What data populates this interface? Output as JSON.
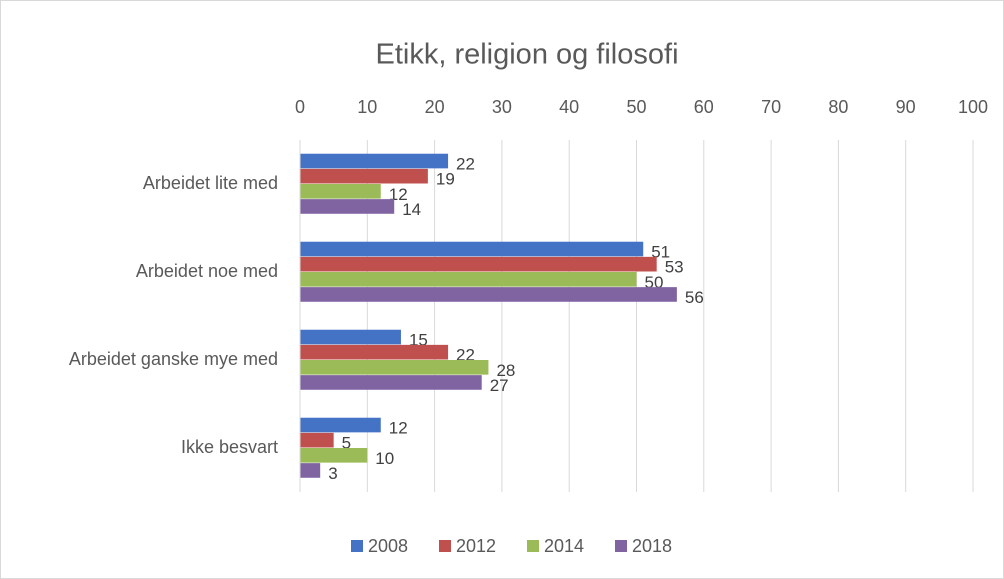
{
  "chart_data": {
    "type": "bar",
    "orientation": "horizontal",
    "title": "Etikk, religion og filosofi",
    "categories": [
      "Arbeidet lite med",
      "Arbeidet noe med",
      "Arbeidet ganske mye med",
      "Ikke besvart"
    ],
    "series": [
      {
        "name": "2008",
        "color": "#4472c4",
        "values": [
          22,
          51,
          15,
          12
        ]
      },
      {
        "name": "2012",
        "color": "#c0504d",
        "values": [
          19,
          53,
          22,
          5
        ]
      },
      {
        "name": "2014",
        "color": "#9bbb59",
        "values": [
          12,
          50,
          28,
          10
        ]
      },
      {
        "name": "2018",
        "color": "#8064a2",
        "values": [
          14,
          56,
          27,
          3
        ]
      }
    ],
    "xlim": [
      0,
      100
    ],
    "xticks": [
      0,
      10,
      20,
      30,
      40,
      50,
      60,
      70,
      80,
      90,
      100
    ],
    "grid": true,
    "legend": "bottom"
  }
}
